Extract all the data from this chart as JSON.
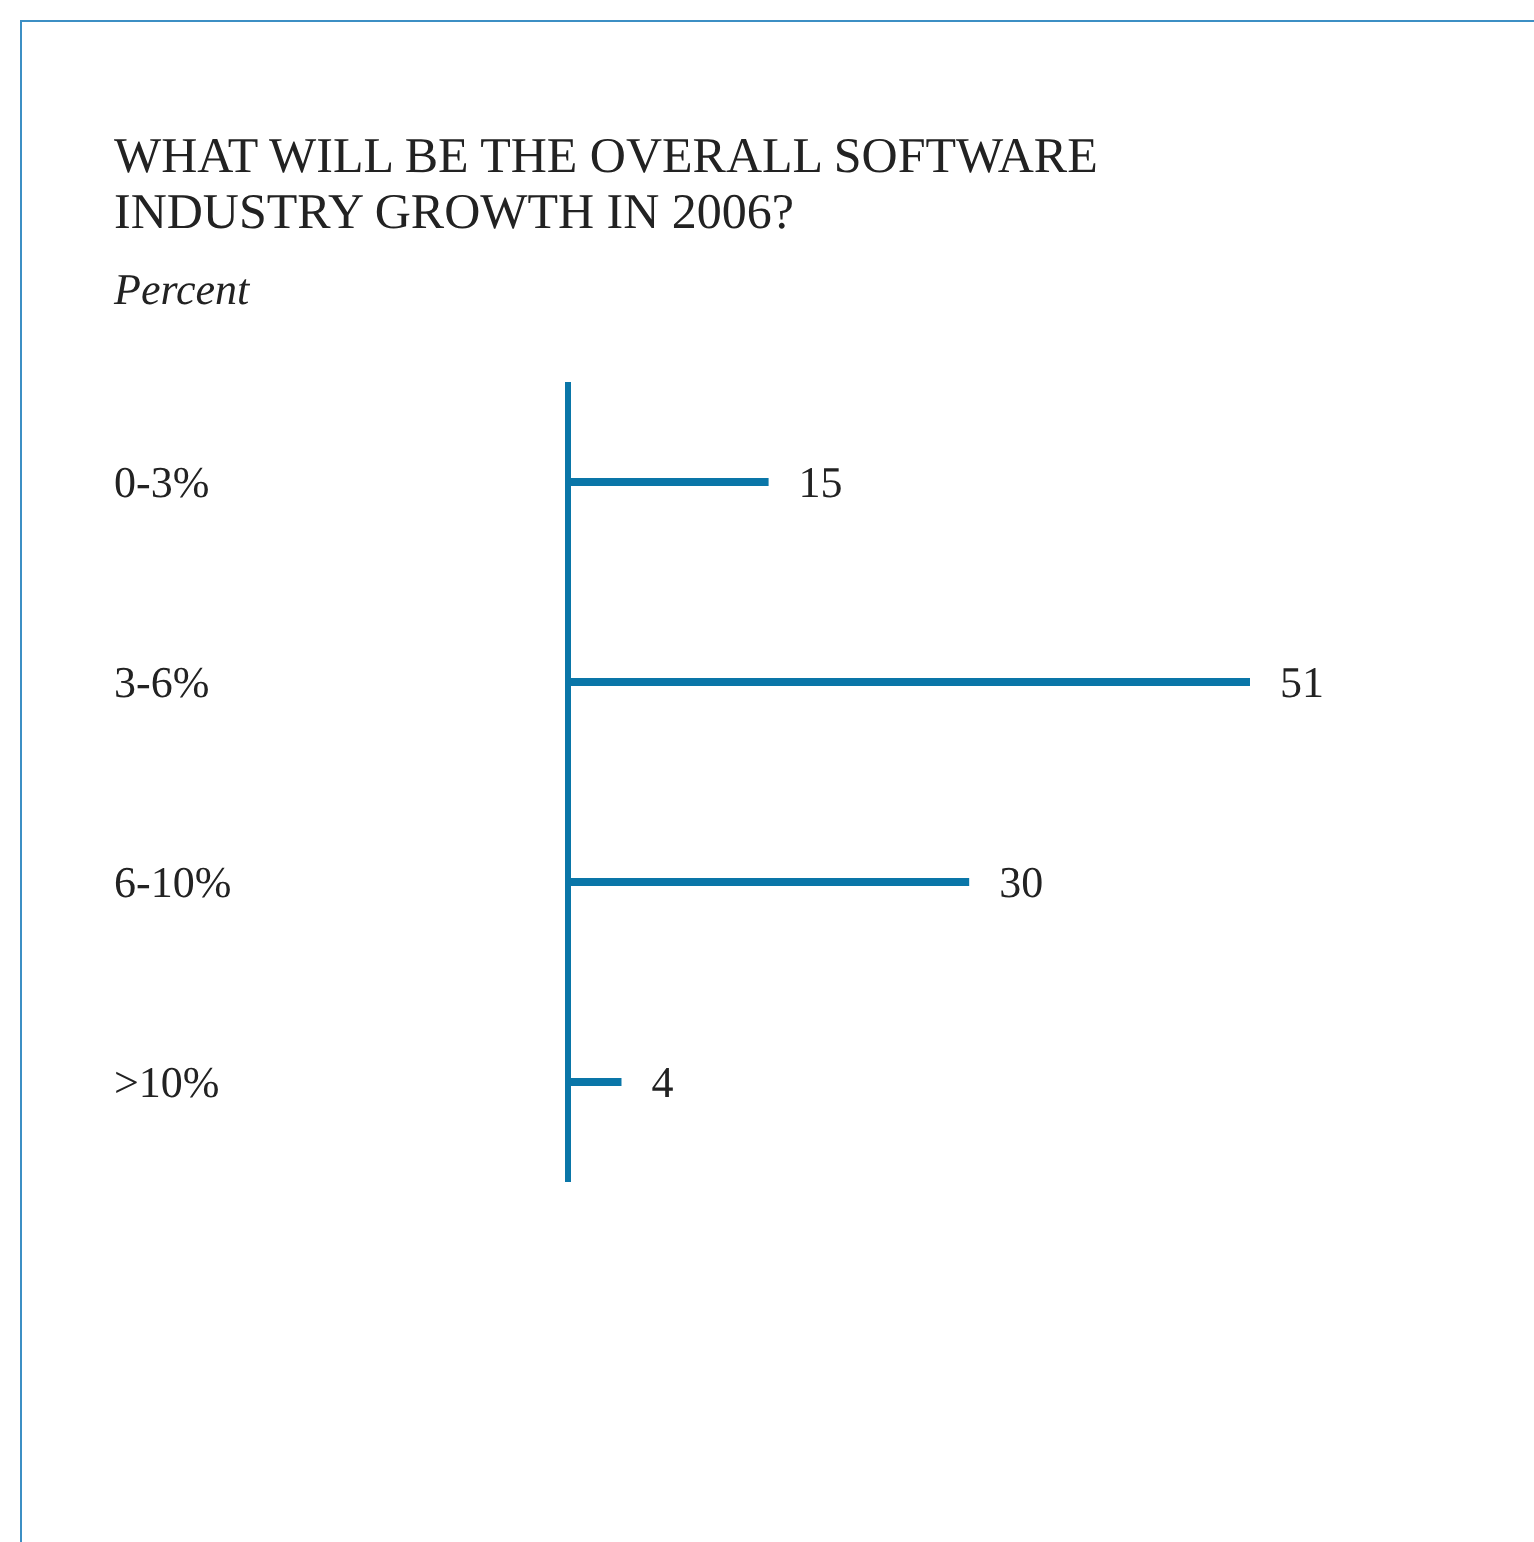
{
  "chart_data": {
    "type": "bar",
    "orientation": "horizontal",
    "title": "WHAT WILL BE THE OVERALL SOFTWARE INDUSTRY GROWTH IN 2006?",
    "subtitle": "Percent",
    "categories": [
      "0-3%",
      "3-6%",
      "6-10%",
      ">10%"
    ],
    "values": [
      15,
      51,
      30,
      4
    ],
    "color": "#0a76a8",
    "data_labels": true
  }
}
